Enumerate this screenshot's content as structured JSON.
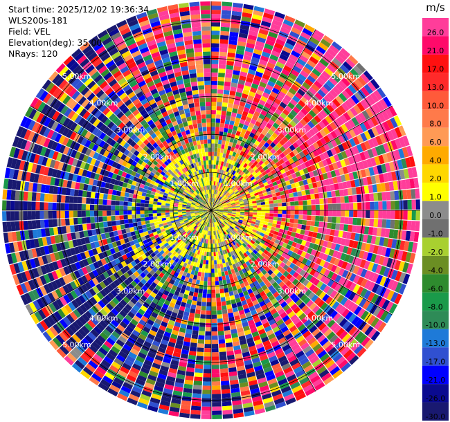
{
  "header": {
    "start_time": "Start time: 2025/12/02 19:36:34",
    "station": "WLS200s-181",
    "field": "Field: VEL",
    "elevation": "Elevation(deg): 35.00",
    "nrays": "NRays: 120"
  },
  "colorbar": {
    "unit": "m/s",
    "levels": [
      {
        "label": "26.0",
        "color": "#ff3d9a"
      },
      {
        "label": "21.0",
        "color": "#ff0a6a"
      },
      {
        "label": "17.0",
        "color": "#ff1010"
      },
      {
        "label": "13.0",
        "color": "#ff2a2a"
      },
      {
        "label": "10.0",
        "color": "#ff5a3a"
      },
      {
        "label": "8.0",
        "color": "#ff7a4a"
      },
      {
        "label": "6.0",
        "color": "#ff9a55"
      },
      {
        "label": "4.0",
        "color": "#ffaa00"
      },
      {
        "label": "2.0",
        "color": "#ffd700"
      },
      {
        "label": "1.0",
        "color": "#ffff00"
      },
      {
        "label": "0.0",
        "color": "#8c8c8c"
      },
      {
        "label": "-1.0",
        "color": "#707070"
      },
      {
        "label": "-2.0",
        "color": "#a8d030"
      },
      {
        "label": "-4.0",
        "color": "#6b8e23"
      },
      {
        "label": "-6.0",
        "color": "#2e8b2e"
      },
      {
        "label": "-8.0",
        "color": "#1a9a4a"
      },
      {
        "label": "-10.0",
        "color": "#2e8b57"
      },
      {
        "label": "-13.0",
        "color": "#1e7ad8"
      },
      {
        "label": "-17.0",
        "color": "#3050d0"
      },
      {
        "label": "-21.0",
        "color": "#0000ff"
      },
      {
        "label": "-26.0",
        "color": "#0a0a90"
      },
      {
        "label": "-30.0",
        "color": "#191970"
      }
    ]
  },
  "chart_data": {
    "type": "heatmap",
    "projection": "polar-ppi",
    "field": "VEL",
    "units": "m/s",
    "nrays": 120,
    "range_rings_km": [
      1,
      2,
      3,
      4,
      5
    ],
    "ring_labels": [
      "1.00km",
      "2.00km",
      "3.00km",
      "4.00km",
      "5.00km"
    ],
    "value_range": [
      -30.0,
      26.0
    ],
    "pattern": "dipole: positive velocities (red/magenta) to the east, negative velocities (blue) to the west-southwest; near-zero yellow/gray core within about 1.5 km",
    "grid": true
  }
}
